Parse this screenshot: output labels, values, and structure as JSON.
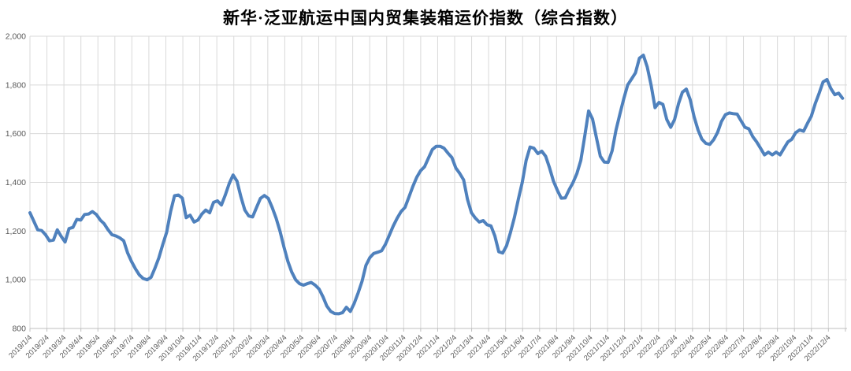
{
  "chart_data": {
    "type": "line",
    "title": "新华·泛亚航运中国内贸集装箱运价指数（综合指数）",
    "xlabel": "",
    "ylabel": "",
    "ylim": [
      800,
      2000
    ],
    "y_tick_step": 200,
    "y_tick_labels": [
      "800",
      "1,000",
      "1,200",
      "1,400",
      "1,600",
      "1,800",
      "2,000"
    ],
    "grid": true,
    "legend_position": "none",
    "line_color": "#4F81BD",
    "grid_color": "#D9D9D9",
    "axis_color": "#BFBFBF",
    "label_color": "#595959",
    "title_color": "#000000",
    "background_color": "#FFFFFF",
    "x_tick_labels": [
      "2019/1/4",
      "2019/2/4",
      "2019/3/4",
      "2019/4/4",
      "2019/5/4",
      "2019/6/4",
      "2019/7/4",
      "2019/8/4",
      "2019/9/4",
      "2019/10/4",
      "2019/11/4",
      "2019/12/4",
      "2020/1/4",
      "2020/2/4",
      "2020/3/4",
      "2020/4/4",
      "2020/5/4",
      "2020/6/4",
      "2020/7/4",
      "2020/8/4",
      "2020/9/4",
      "2020/10/4",
      "2020/11/4",
      "2020/12/4",
      "2021/1/4",
      "2021/2/4",
      "2021/3/4",
      "2021/4/4",
      "2021/5/4",
      "2021/6/4",
      "2021/7/4",
      "2021/8/4",
      "2021/9/4",
      "2021/10/4",
      "2021/11/4",
      "2021/12/4",
      "2022/1/4",
      "2022/2/4",
      "2022/3/4",
      "2022/4/4",
      "2022/5/4",
      "2022/6/4",
      "2022/7/4",
      "2022/8/4",
      "2022/9/4",
      "2022/10/4",
      "2022/11/4",
      "2022/12/4"
    ],
    "series": [
      {
        "name": "综合指数",
        "start_date": "2019/1/4",
        "interval_days": 7,
        "values": [
          1275,
          1240,
          1205,
          1202,
          1185,
          1160,
          1163,
          1205,
          1178,
          1155,
          1210,
          1215,
          1248,
          1245,
          1268,
          1270,
          1280,
          1268,
          1245,
          1230,
          1205,
          1185,
          1180,
          1172,
          1160,
          1110,
          1075,
          1045,
          1020,
          1005,
          1000,
          1010,
          1048,
          1090,
          1145,
          1195,
          1280,
          1345,
          1348,
          1335,
          1255,
          1265,
          1237,
          1245,
          1270,
          1286,
          1275,
          1318,
          1324,
          1307,
          1348,
          1395,
          1430,
          1405,
          1340,
          1286,
          1262,
          1258,
          1297,
          1334,
          1346,
          1334,
          1297,
          1253,
          1200,
          1135,
          1076,
          1032,
          1000,
          984,
          978,
          984,
          989,
          978,
          962,
          930,
          892,
          870,
          861,
          860,
          865,
          887,
          870,
          903,
          946,
          994,
          1059,
          1091,
          1108,
          1113,
          1119,
          1146,
          1184,
          1221,
          1253,
          1280,
          1297,
          1340,
          1383,
          1421,
          1448,
          1464,
          1500,
          1535,
          1548,
          1548,
          1540,
          1520,
          1502,
          1459,
          1437,
          1410,
          1330,
          1275,
          1253,
          1237,
          1243,
          1226,
          1221,
          1180,
          1115,
          1110,
          1140,
          1195,
          1255,
          1330,
          1400,
          1490,
          1545,
          1540,
          1518,
          1528,
          1507,
          1459,
          1405,
          1367,
          1335,
          1336,
          1370,
          1399,
          1437,
          1490,
          1590,
          1693,
          1660,
          1582,
          1507,
          1483,
          1482,
          1529,
          1615,
          1680,
          1744,
          1800,
          1825,
          1850,
          1910,
          1922,
          1874,
          1798,
          1707,
          1728,
          1720,
          1658,
          1626,
          1658,
          1723,
          1770,
          1783,
          1739,
          1669,
          1615,
          1577,
          1560,
          1556,
          1575,
          1605,
          1650,
          1678,
          1685,
          1682,
          1680,
          1653,
          1626,
          1620,
          1588,
          1566,
          1540,
          1513,
          1524,
          1513,
          1524,
          1513,
          1540,
          1566,
          1577,
          1604,
          1615,
          1610,
          1642,
          1672,
          1723,
          1766,
          1812,
          1822,
          1785,
          1760,
          1766,
          1745
        ]
      }
    ]
  }
}
